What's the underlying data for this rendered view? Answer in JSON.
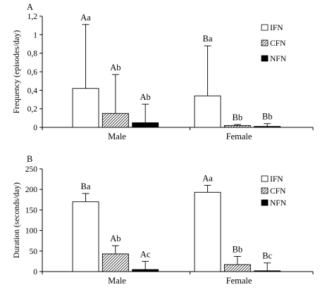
{
  "chart_data": [
    {
      "panel_label": "A",
      "type": "bar",
      "ylabel": "Frequency (episodes/day)",
      "ylim": [
        0,
        1.2
      ],
      "y_ticks": [
        "0",
        "0,2",
        "0,4",
        "0,6",
        "0,8",
        "1",
        "1,2"
      ],
      "categories": [
        "Male",
        "Female"
      ],
      "series": [
        {
          "name": "IFN",
          "fill": "white",
          "values": [
            0.42,
            0.34
          ],
          "errors": [
            0.69,
            0.54
          ],
          "labels": [
            "Aa",
            "Ba"
          ]
        },
        {
          "name": "CFN",
          "fill": "hatched",
          "values": [
            0.15,
            0.02
          ],
          "errors": [
            0.42,
            0.01
          ],
          "labels": [
            "Ab",
            "Bb"
          ]
        },
        {
          "name": "NFN",
          "fill": "black",
          "values": [
            0.05,
            0.01
          ],
          "errors": [
            0.2,
            0.03
          ],
          "labels": [
            "Ab",
            "Bb"
          ]
        }
      ],
      "legend_position": "top-right"
    },
    {
      "panel_label": "B",
      "type": "bar",
      "ylabel": "Duration (seconds/day)",
      "ylim": [
        0,
        250
      ],
      "y_ticks": [
        "0",
        "50",
        "100",
        "150",
        "200",
        "250"
      ],
      "categories": [
        "Male",
        "Female"
      ],
      "series": [
        {
          "name": "IFN",
          "fill": "white",
          "values": [
            170,
            193
          ],
          "errors": [
            20,
            17
          ],
          "labels": [
            "Ba",
            "Aa"
          ]
        },
        {
          "name": "CFN",
          "fill": "hatched",
          "values": [
            43,
            17
          ],
          "errors": [
            20,
            20
          ],
          "labels": [
            "Ab",
            "Bb"
          ]
        },
        {
          "name": "NFN",
          "fill": "black",
          "values": [
            5,
            2
          ],
          "errors": [
            20,
            19
          ],
          "labels": [
            "Ac",
            "Bc"
          ]
        }
      ],
      "legend_position": "top-right"
    }
  ]
}
